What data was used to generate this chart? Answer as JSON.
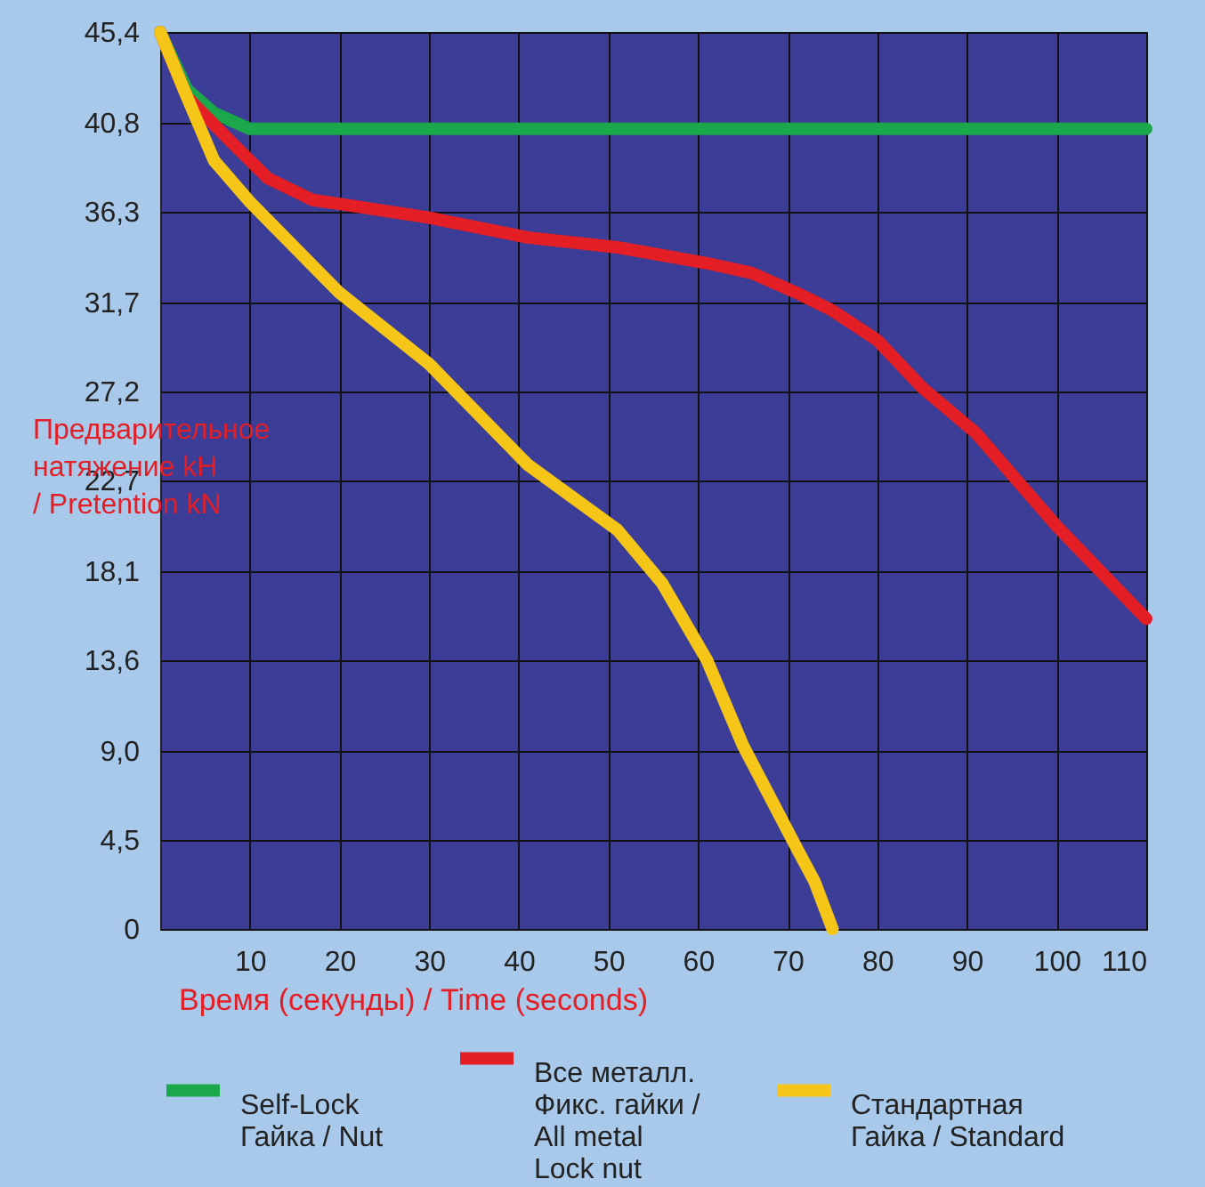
{
  "chart_data": {
    "type": "line",
    "xlabel": "Время (секунды) / Time (seconds)",
    "ylabel": "Предварительное\nнатяжение kH\n/ Pretention kN",
    "xlim": [
      0,
      110
    ],
    "ylim": [
      0,
      45.4
    ],
    "xticks": [
      10,
      20,
      30,
      40,
      50,
      60,
      70,
      80,
      90,
      100,
      110
    ],
    "yticks": [
      0,
      {
        "value": 4.5,
        "label": "4,5"
      },
      {
        "value": 9.0,
        "label": "9,0"
      },
      {
        "value": 13.6,
        "label": "13,6"
      },
      {
        "value": 18.1,
        "label": "18,1"
      },
      {
        "value": 22.7,
        "label": "22,7"
      },
      {
        "value": 27.2,
        "label": "27,2"
      },
      {
        "value": 31.7,
        "label": "31,7"
      },
      {
        "value": 36.3,
        "label": "36,3"
      },
      {
        "value": 40.8,
        "label": "40,8"
      },
      {
        "value": 45.4,
        "label": "45,4"
      }
    ],
    "grid": true,
    "legend": "bottom",
    "marker": "none",
    "line_style": "solid",
    "series": [
      {
        "name": "Self-Lock\nГайка / Nut",
        "color": "#1aa84a",
        "x": [
          0,
          3,
          6,
          10,
          110
        ],
        "values": [
          45.4,
          42.5,
          41.3,
          40.5,
          40.5
        ]
      },
      {
        "name": "Все металл.\nФикс. гайки /\nAll metal\nLock nut",
        "color": "#e31e24",
        "x": [
          0,
          3,
          8,
          12,
          17,
          20,
          30,
          41,
          51,
          61,
          66,
          71,
          75,
          80,
          85,
          91,
          100,
          110
        ],
        "values": [
          45.4,
          42.1,
          39.8,
          38.0,
          36.9,
          36.7,
          36.0,
          35.0,
          34.5,
          33.7,
          33.2,
          32.2,
          31.3,
          29.8,
          27.4,
          25.1,
          20.4,
          15.7
        ]
      },
      {
        "name": "Стандартная\nГайка / Standard",
        "color": "#f5c518",
        "x": [
          0,
          3,
          6,
          10,
          20,
          30,
          41,
          51,
          56,
          61,
          65,
          71,
          73,
          75
        ],
        "values": [
          45.4,
          42.1,
          38.9,
          36.8,
          32.2,
          28.6,
          23.5,
          20.2,
          17.5,
          13.6,
          9.3,
          4.1,
          2.4,
          0
        ]
      }
    ]
  }
}
